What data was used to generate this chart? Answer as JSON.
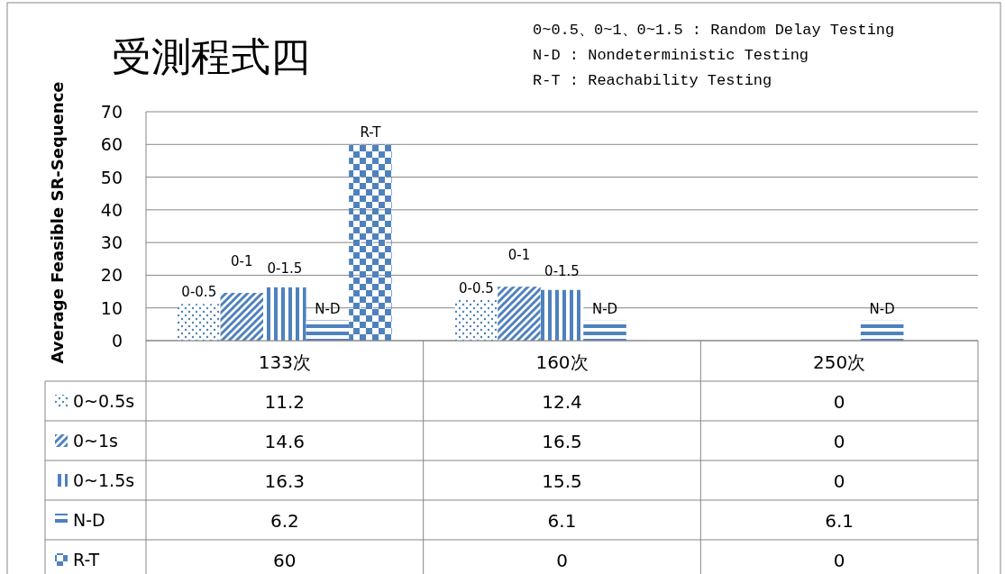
{
  "chart_data": {
    "type": "bar",
    "title": "受測程式四",
    "ylabel": "Average Feasible SR-Sequence",
    "categories": [
      "133次",
      "160次",
      "250次"
    ],
    "series": [
      {
        "name": "0~0.5s",
        "color": "#4f81bd",
        "values": [
          11.2,
          12.4,
          0
        ]
      },
      {
        "name": "0~1s",
        "color": "#4f81bd",
        "values": [
          14.6,
          16.5,
          0
        ]
      },
      {
        "name": "0~1.5s",
        "color": "#4f81bd",
        "values": [
          16.3,
          15.5,
          0
        ]
      },
      {
        "name": "N-D",
        "color": "#4f81bd",
        "values": [
          6.2,
          6.1,
          6.1
        ]
      },
      {
        "name": "R-T",
        "color": "#4f81bd",
        "values": [
          60,
          0,
          0
        ]
      }
    ],
    "ylim": [
      0,
      70
    ],
    "yticks": [
      0,
      10,
      20,
      30,
      40,
      50,
      60,
      70
    ],
    "grid": "y",
    "legend": "bottom",
    "data_labels": true,
    "annotations": [
      "0~0.5、0~1、0~1.5 : Random Delay Testing",
      "N-D : Nondeterministic Testing",
      "R-T : Reachability Testing",
      "0-0.5",
      "0-1",
      "0-1.5",
      "N-D",
      "R-T",
      "0-0.5",
      "0-1",
      "0-1.5",
      "N-D",
      "N-D"
    ]
  }
}
